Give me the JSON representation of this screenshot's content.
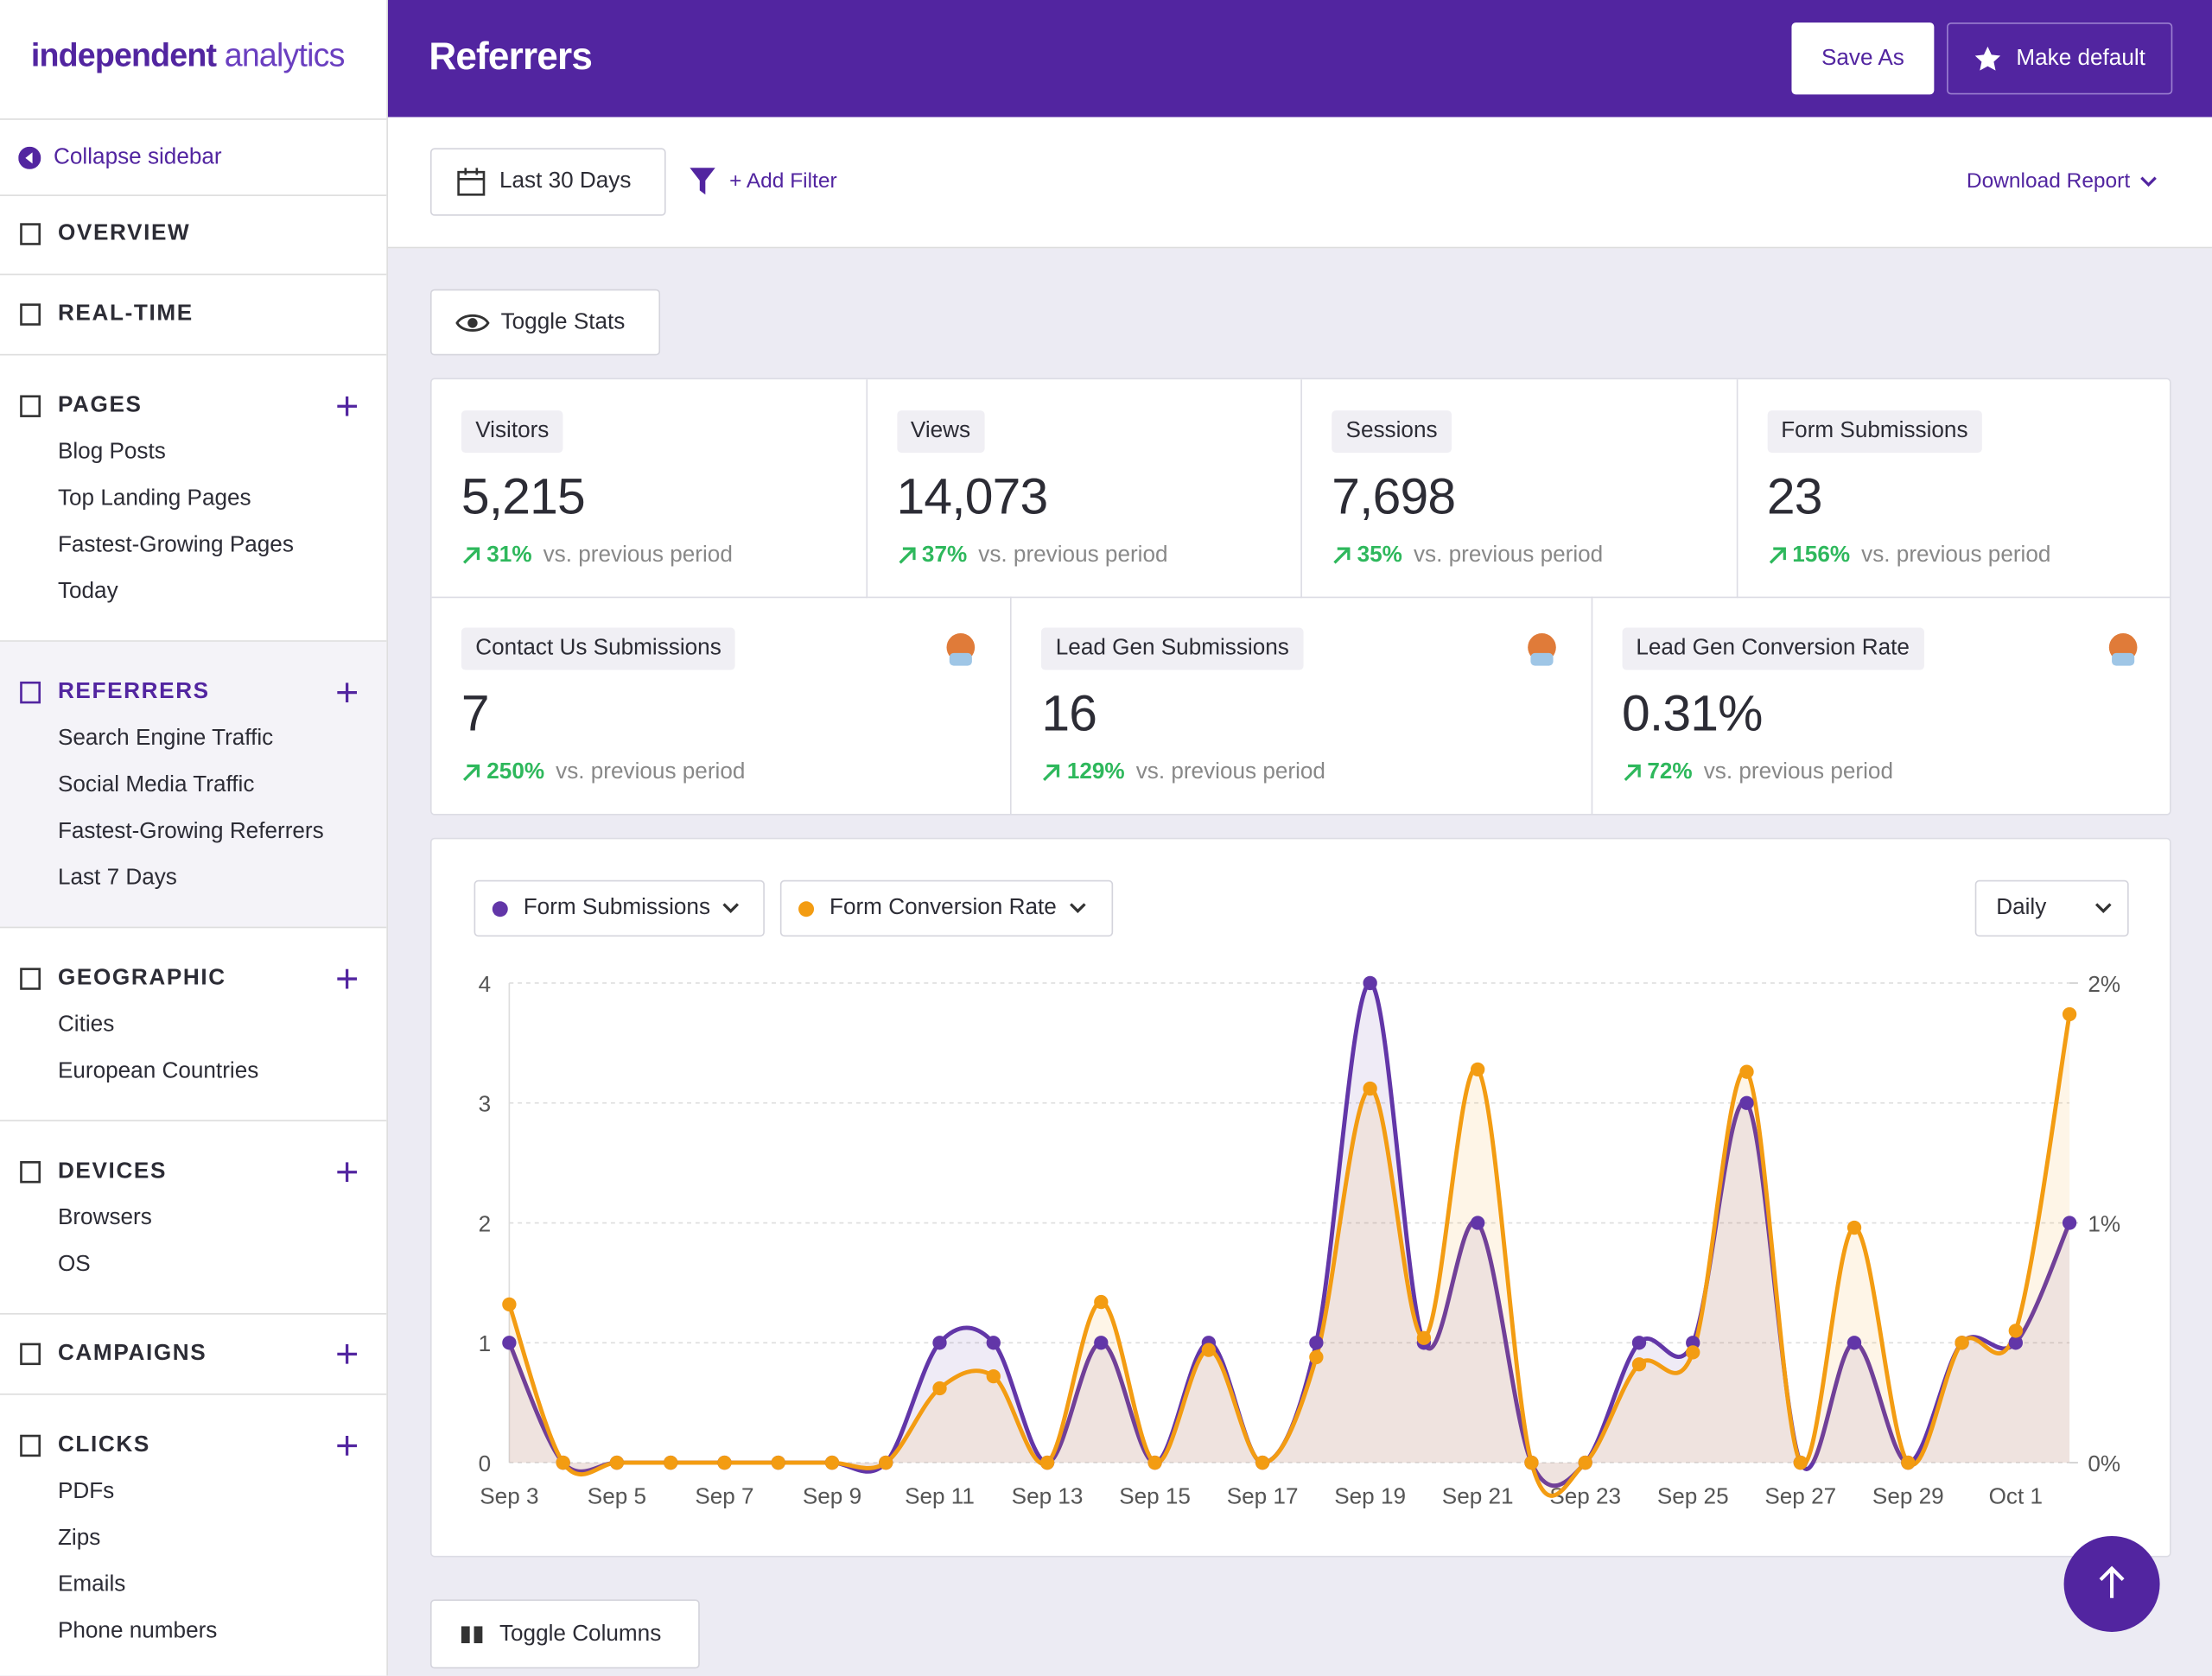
{
  "logo": {
    "first": "independent",
    "second": "analytics"
  },
  "header": {
    "title": "Referrers",
    "save_as": "Save As",
    "make_default": "Make default"
  },
  "sidebar": {
    "collapse": "Collapse sidebar",
    "sections": [
      {
        "title": "OVERVIEW",
        "expandable": false,
        "items": []
      },
      {
        "title": "REAL-TIME",
        "expandable": false,
        "items": []
      },
      {
        "title": "PAGES",
        "expandable": true,
        "items": [
          "Blog Posts",
          "Top Landing Pages",
          "Fastest-Growing Pages",
          "Today"
        ]
      },
      {
        "title": "REFERRERS",
        "expandable": true,
        "active": true,
        "items": [
          "Search Engine Traffic",
          "Social Media Traffic",
          "Fastest-Growing Referrers",
          "Last 7 Days"
        ]
      },
      {
        "title": "GEOGRAPHIC",
        "expandable": true,
        "items": [
          "Cities",
          "European Countries"
        ]
      },
      {
        "title": "DEVICES",
        "expandable": true,
        "items": [
          "Browsers",
          "OS"
        ]
      },
      {
        "title": "CAMPAIGNS",
        "expandable": true,
        "items": []
      },
      {
        "title": "CLICKS",
        "expandable": true,
        "items": [
          "PDFs",
          "Zips",
          "Emails",
          "Phone numbers"
        ]
      }
    ]
  },
  "toolbar": {
    "date_range": "Last 30 Days",
    "add_filter": "+ Add Filter",
    "download": "Download Report",
    "toggle_stats": "Toggle Stats",
    "toggle_columns": "Toggle Columns"
  },
  "stats": {
    "rows": [
      [
        {
          "label": "Visitors",
          "value": "5,215",
          "change": "31%",
          "note": "vs. previous period"
        },
        {
          "label": "Views",
          "value": "14,073",
          "change": "37%",
          "note": "vs. previous period"
        },
        {
          "label": "Sessions",
          "value": "7,698",
          "change": "35%",
          "note": "vs. previous period"
        },
        {
          "label": "Form Submissions",
          "value": "23",
          "change": "156%",
          "note": "vs. previous period"
        }
      ],
      [
        {
          "label": "Contact Us Submissions",
          "value": "7",
          "change": "250%",
          "note": "vs. previous period"
        },
        {
          "label": "Lead Gen Submissions",
          "value": "16",
          "change": "129%",
          "note": "vs. previous period"
        },
        {
          "label": "Lead Gen Conversion Rate",
          "value": "0.31%",
          "change": "72%",
          "note": "vs. previous period"
        }
      ]
    ]
  },
  "chart_data": {
    "type": "line",
    "interval": "Daily",
    "grid": true,
    "categories": [
      "Sep 3",
      null,
      "Sep 5",
      null,
      "Sep 7",
      null,
      "Sep 9",
      null,
      "Sep 11",
      null,
      "Sep 13",
      null,
      "Sep 15",
      null,
      "Sep 17",
      null,
      "Sep 19",
      null,
      "Sep 21",
      null,
      "Sep 23",
      null,
      "Sep 25",
      null,
      "Sep 27",
      null,
      "Sep 29",
      null,
      "Oct 1",
      null
    ],
    "series": [
      {
        "name": "Form Submissions",
        "color": "#6236a8",
        "axis": "y",
        "values": [
          1,
          0,
          0,
          0,
          0,
          0,
          0,
          0,
          1,
          1,
          0,
          1,
          0,
          1,
          0,
          1,
          4,
          1,
          2,
          0,
          0,
          1,
          1,
          3,
          0,
          1,
          0,
          1,
          1,
          2
        ]
      },
      {
        "name": "Form Conversion Rate",
        "color": "#f39c12",
        "axis": "y2",
        "values": [
          0.66,
          0,
          0,
          0,
          0,
          0,
          0,
          0,
          0.31,
          0.36,
          0,
          0.67,
          0,
          0.47,
          0,
          0.44,
          1.56,
          0.52,
          1.64,
          0,
          0,
          0.41,
          0.46,
          1.63,
          0,
          0.98,
          0,
          0.5,
          0.55,
          1.87
        ]
      }
    ],
    "ylim": [
      0,
      4
    ],
    "yticks": [
      0,
      1,
      2,
      3,
      4
    ],
    "y2lim": [
      0,
      2
    ],
    "y2ticks": [
      {
        "value": 0,
        "label": "0%"
      },
      {
        "value": 1,
        "label": "1%"
      },
      {
        "value": 2,
        "label": "2%"
      }
    ]
  }
}
